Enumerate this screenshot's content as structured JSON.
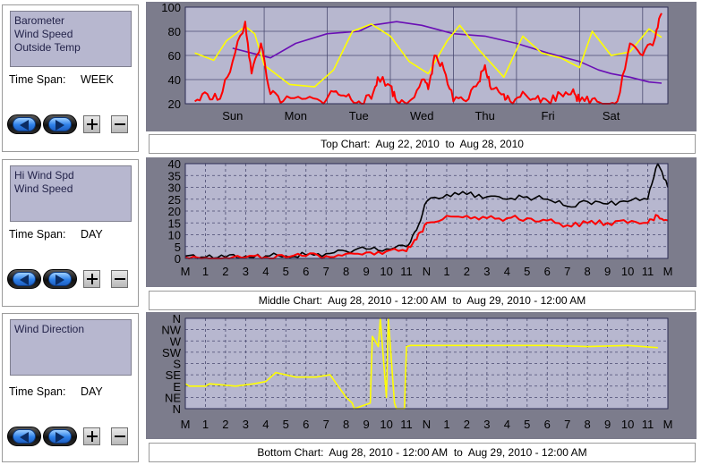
{
  "panels": [
    {
      "series": [
        "Barometer",
        "Wind Speed",
        "Outside Temp"
      ],
      "time_span_label": "Time Span:",
      "time_span_value": "WEEK",
      "caption": "Top Chart:  Aug 22, 2010  to  Aug 28, 2010"
    },
    {
      "series": [
        "Hi Wind Spd",
        "Wind Speed"
      ],
      "time_span_label": "Time Span:",
      "time_span_value": "DAY",
      "caption": "Middle Chart:  Aug 28, 2010 - 12:00 AM  to  Aug 29, 2010 - 12:00 AM"
    },
    {
      "series": [
        "Wind Direction"
      ],
      "time_span_label": "Time Span:",
      "time_span_value": "DAY",
      "caption": "Bottom Chart:  Aug 28, 2010 - 12:00 AM  to  Aug 29, 2010 - 12:00 AM"
    }
  ],
  "icons": {
    "prev": "left-arrow-icon",
    "next": "right-arrow-icon",
    "zoom_in": "plus-icon",
    "zoom_out": "minus-icon"
  },
  "colors": {
    "plot_bg": "#b7b7cf",
    "frame": "#7c7c8c",
    "grid": "#4a4a70",
    "barometer": "#6a0fb5",
    "wind_speed": "#ff0000",
    "outside_temp": "#ffff00",
    "hi_wind": "#000000",
    "wind_direction": "#ffff00"
  },
  "chart_data": [
    {
      "type": "line",
      "ylim": [
        20,
        100
      ],
      "y_ticks": [
        20,
        40,
        60,
        80,
        100
      ],
      "categories": [
        "Sun",
        "Mon",
        "Tue",
        "Wed",
        "Thu",
        "Fri",
        "Sat"
      ],
      "grid": true,
      "series": [
        {
          "name": "Barometer",
          "x": [
            0,
            0.3,
            0.6,
            1.0,
            1.5,
            2.0,
            2.2,
            2.6,
            3.0,
            3.5,
            4.0,
            4.5,
            5.0,
            5.5,
            5.8,
            6.0,
            6.3,
            6.6,
            6.8
          ],
          "values": [
            66,
            62,
            58,
            70,
            78,
            80,
            85,
            88,
            85,
            78,
            76,
            70,
            62,
            55,
            48,
            45,
            42,
            38,
            37
          ]
        },
        {
          "name": "Outside Temp",
          "x": [
            -0.6,
            -0.3,
            -0.1,
            0.2,
            0.35,
            0.5,
            0.9,
            1.3,
            1.6,
            1.9,
            2.2,
            2.5,
            2.8,
            3.1,
            3.4,
            3.6,
            3.9,
            4.3,
            4.6,
            4.9,
            5.2,
            5.5,
            5.7,
            6.0,
            6.3,
            6.6,
            6.8
          ],
          "values": [
            62,
            56,
            72,
            84,
            78,
            52,
            36,
            34,
            48,
            80,
            86,
            76,
            55,
            45,
            72,
            85,
            65,
            42,
            76,
            62,
            58,
            50,
            80,
            60,
            63,
            82,
            75
          ]
        },
        {
          "name": "Wind Speed",
          "x": [
            -0.6,
            -0.4,
            -0.2,
            0,
            0.2,
            0.3,
            0.45,
            0.6,
            0.8,
            1.1,
            1.4,
            1.6,
            1.8,
            2.0,
            2.2,
            2.3,
            2.5,
            2.6,
            2.8,
            3.0,
            3.1,
            3.2,
            3.35,
            3.5,
            3.7,
            3.9,
            4.0,
            4.1,
            4.3,
            4.4,
            4.6,
            4.8,
            5.0,
            5.2,
            5.4,
            5.5,
            5.7,
            5.9,
            6.1,
            6.3,
            6.5,
            6.7,
            6.8
          ],
          "values": [
            22,
            28,
            24,
            55,
            88,
            45,
            70,
            28,
            22,
            24,
            22,
            30,
            26,
            22,
            24,
            42,
            35,
            22,
            22,
            40,
            32,
            60,
            48,
            22,
            22,
            38,
            52,
            32,
            28,
            22,
            30,
            24,
            22,
            28,
            32,
            22,
            24,
            20,
            22,
            70,
            60,
            75,
            95
          ]
        }
      ]
    },
    {
      "type": "line",
      "ylim": [
        0,
        40
      ],
      "y_ticks": [
        0,
        5,
        10,
        15,
        20,
        25,
        30,
        35,
        40
      ],
      "categories": [
        "M",
        "1",
        "2",
        "3",
        "4",
        "5",
        "6",
        "7",
        "8",
        "9",
        "10",
        "11",
        "N",
        "1",
        "2",
        "3",
        "4",
        "5",
        "6",
        "7",
        "8",
        "9",
        "10",
        "11",
        "M"
      ],
      "grid": true,
      "series": [
        {
          "name": "Hi Wind Spd",
          "x": [
            0,
            1,
            2,
            3,
            4,
            5,
            6,
            7,
            8,
            9,
            10,
            11,
            11.5,
            12,
            13,
            14,
            15,
            16,
            17,
            18,
            19,
            20,
            21,
            22,
            23,
            23.5,
            24
          ],
          "values": [
            1,
            0.5,
            0.5,
            1,
            1,
            1,
            1.5,
            2,
            3,
            4,
            4,
            5,
            12,
            24,
            27,
            27,
            26,
            25,
            26,
            25,
            22,
            24,
            23,
            24,
            25,
            40,
            30
          ]
        },
        {
          "name": "Wind Speed",
          "x": [
            0,
            1,
            2,
            3,
            4,
            5,
            6,
            7,
            8,
            9,
            10,
            11,
            11.5,
            12,
            13,
            14,
            15,
            16,
            17,
            18,
            19,
            20,
            21,
            22,
            23,
            23.5,
            24
          ],
          "values": [
            0.5,
            0.2,
            0.2,
            0.5,
            0.5,
            0.5,
            1,
            1,
            2,
            2.5,
            3,
            3,
            8,
            15,
            18,
            18,
            17,
            17,
            17,
            16,
            14,
            15,
            15,
            15,
            15,
            18,
            16
          ]
        }
      ]
    },
    {
      "type": "line",
      "y_ticks": [
        "N",
        "NE",
        "E",
        "SE",
        "S",
        "SW",
        "W",
        "NW",
        "N"
      ],
      "categories": [
        "M",
        "1",
        "2",
        "3",
        "4",
        "5",
        "6",
        "7",
        "8",
        "9",
        "10",
        "11",
        "N",
        "1",
        "2",
        "3",
        "4",
        "5",
        "6",
        "7",
        "8",
        "9",
        "10",
        "11",
        "M"
      ],
      "grid": true,
      "series": [
        {
          "name": "Wind Direction",
          "x": [
            0,
            0.2,
            1,
            1.2,
            2.5,
            3.4,
            4,
            4.5,
            5.5,
            6.5,
            7.2,
            7.6,
            8.0,
            8.3,
            8.4,
            9.2,
            9.3,
            9.6,
            9.7,
            10.0,
            10.1,
            10.4,
            10.5,
            10.9,
            11.0,
            11.2,
            12,
            14,
            16,
            18,
            20,
            22,
            23.5
          ],
          "values": [
            2.2,
            2.0,
            2.0,
            2.2,
            2.0,
            2.2,
            2.4,
            3.2,
            2.8,
            2.8,
            3.0,
            2.0,
            1.0,
            0.5,
            0.0,
            0.5,
            6.4,
            5.5,
            8.0,
            1.0,
            8.0,
            0.5,
            0.0,
            0.0,
            5.5,
            5.6,
            5.6,
            5.6,
            5.6,
            5.6,
            5.5,
            5.6,
            5.4
          ]
        }
      ]
    }
  ]
}
